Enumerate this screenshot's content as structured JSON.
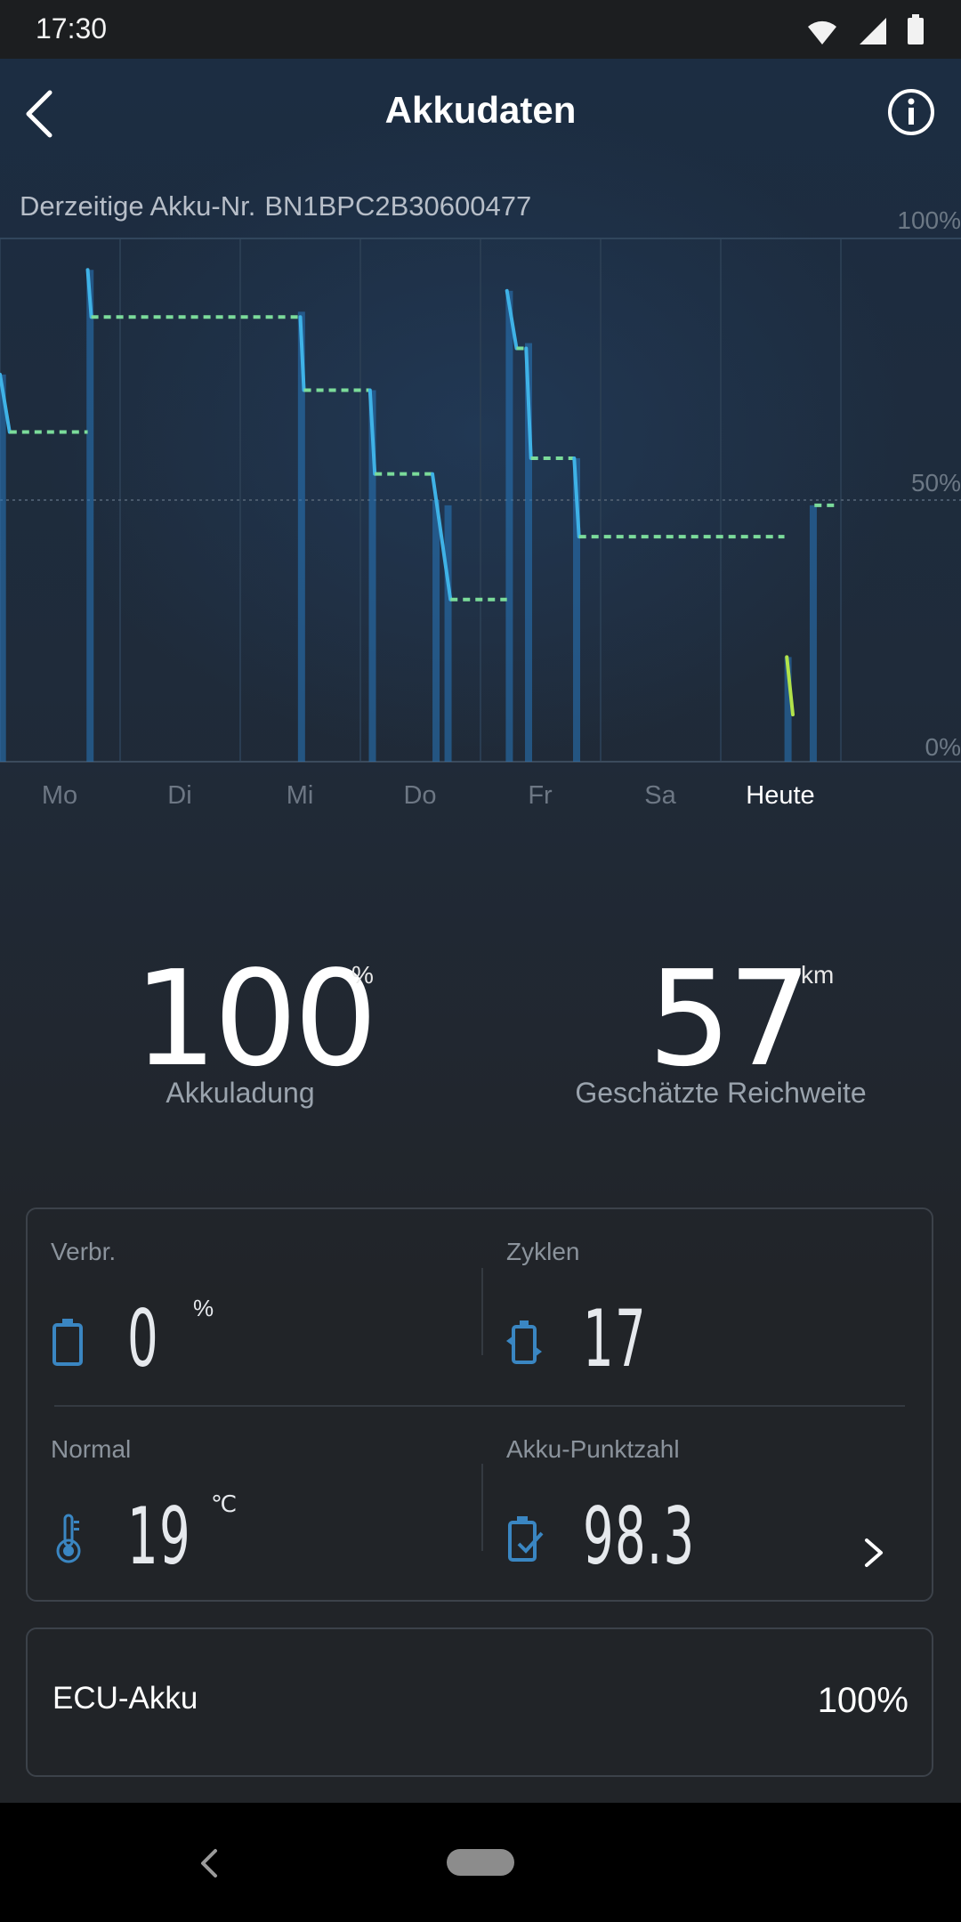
{
  "status_bar": {
    "time": "17:30"
  },
  "header": {
    "title": "Akkudaten"
  },
  "battery": {
    "label": "Derzeitige Akku-Nr.",
    "number": "BN1BPC2B30600477"
  },
  "chart_data": {
    "type": "line",
    "y_ticks": [
      "100%",
      "50%",
      "0%"
    ],
    "ylim": [
      0,
      100
    ],
    "grid": true,
    "x_categories": [
      "Mo",
      "Di",
      "Mi",
      "Do",
      "Fr",
      "Sa",
      "Heute"
    ],
    "active_category": "Heute",
    "series_color_riding": "#3fb2e6",
    "series_color_idle": "#7bdb9a",
    "series_color_low": "#b2e34a",
    "segments": [
      {
        "mode": "riding",
        "x": [
          0.0,
          0.08
        ],
        "y": [
          74,
          63
        ]
      },
      {
        "mode": "idle",
        "x": [
          0.08,
          0.73
        ],
        "y": [
          63,
          63
        ]
      },
      {
        "mode": "riding",
        "x": [
          0.73,
          0.76
        ],
        "y": [
          94,
          85
        ]
      },
      {
        "mode": "idle",
        "x": [
          0.76,
          2.5
        ],
        "y": [
          85,
          85
        ]
      },
      {
        "mode": "riding",
        "x": [
          2.5,
          2.53
        ],
        "y": [
          85,
          71
        ]
      },
      {
        "mode": "idle",
        "x": [
          2.53,
          3.08
        ],
        "y": [
          71,
          71
        ]
      },
      {
        "mode": "riding",
        "x": [
          3.08,
          3.12
        ],
        "y": [
          71,
          55
        ]
      },
      {
        "mode": "idle",
        "x": [
          3.12,
          3.6
        ],
        "y": [
          55,
          55
        ]
      },
      {
        "mode": "riding",
        "x": [
          3.6,
          3.75
        ],
        "y": [
          55,
          31
        ]
      },
      {
        "mode": "idle",
        "x": [
          3.75,
          4.22
        ],
        "y": [
          31,
          31
        ]
      },
      {
        "mode": "riding",
        "x": [
          4.22,
          4.3
        ],
        "y": [
          90,
          79
        ]
      },
      {
        "mode": "idle",
        "x": [
          4.3,
          4.38
        ],
        "y": [
          79,
          79
        ]
      },
      {
        "mode": "riding",
        "x": [
          4.38,
          4.42
        ],
        "y": [
          79,
          58
        ]
      },
      {
        "mode": "idle",
        "x": [
          4.42,
          4.78
        ],
        "y": [
          58,
          58
        ]
      },
      {
        "mode": "riding",
        "x": [
          4.78,
          4.82
        ],
        "y": [
          58,
          43
        ]
      },
      {
        "mode": "idle",
        "x": [
          4.82,
          6.53
        ],
        "y": [
          43,
          43
        ]
      },
      {
        "mode": "low",
        "x": [
          6.55,
          6.6
        ],
        "y": [
          20,
          9
        ]
      },
      {
        "mode": "idle",
        "x": [
          6.78,
          6.96
        ],
        "y": [
          49,
          49
        ]
      }
    ],
    "bars": [
      {
        "x": 0.02,
        "y": 74
      },
      {
        "x": 0.75,
        "y": 94
      },
      {
        "x": 2.51,
        "y": 86
      },
      {
        "x": 3.1,
        "y": 71
      },
      {
        "x": 3.63,
        "y": 50
      },
      {
        "x": 3.73,
        "y": 49
      },
      {
        "x": 4.24,
        "y": 90
      },
      {
        "x": 4.4,
        "y": 80
      },
      {
        "x": 4.8,
        "y": 58
      },
      {
        "x": 6.56,
        "y": 20
      },
      {
        "x": 6.77,
        "y": 49
      }
    ]
  },
  "summary": {
    "charge": {
      "value": "100",
      "unit": "%",
      "label": "Akkuladung"
    },
    "range": {
      "value": "57",
      "unit": "km",
      "label": "Geschätzte Reichweite"
    }
  },
  "metrics": {
    "consumption": {
      "label": "Verbr.",
      "value": "0",
      "unit": "%"
    },
    "cycles": {
      "label": "Zyklen",
      "value": "17"
    },
    "temperature": {
      "label": "Normal",
      "value": "19",
      "unit": "℃"
    },
    "score": {
      "label": "Akku-Punktzahl",
      "value": "98.3"
    }
  },
  "ecu": {
    "label": "ECU-Akku",
    "value": "100%"
  }
}
